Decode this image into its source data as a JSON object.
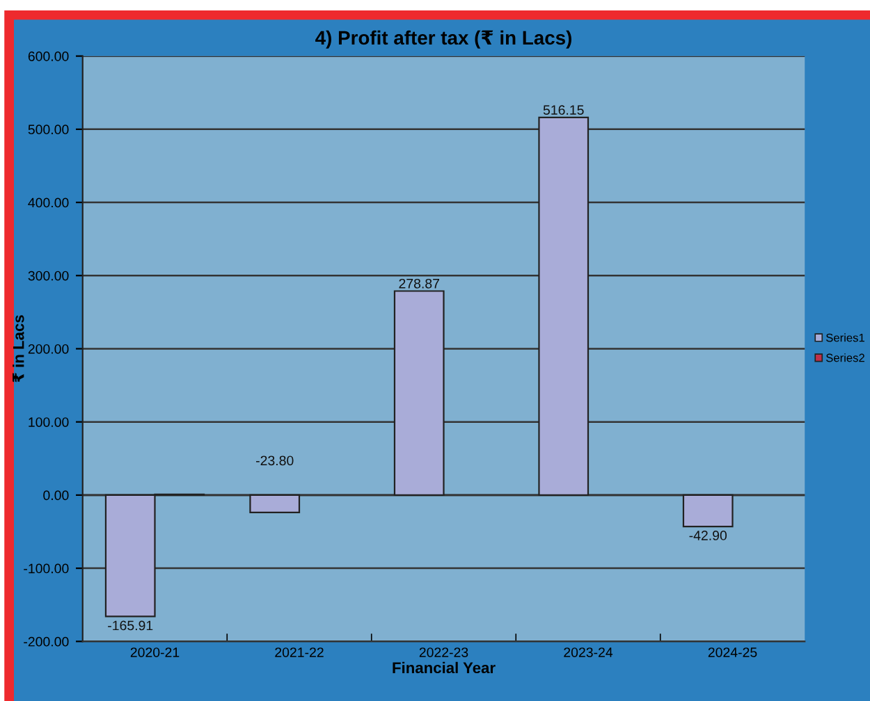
{
  "chart_data": {
    "type": "bar",
    "title": "4) Profit after tax (₹ in Lacs)",
    "xlabel": "Financial Year",
    "ylabel": "₹ in Lacs",
    "categories": [
      "2020-21",
      "2021-22",
      "2022-23",
      "2023-24",
      "2024-25"
    ],
    "series": [
      {
        "name": "Series1",
        "color": "#a9acd8",
        "values": [
          -165.91,
          -23.8,
          278.87,
          516.15,
          -42.9
        ],
        "value_labels": [
          "-165.91",
          "-23.80",
          "278.87",
          "516.15",
          "-42.90"
        ]
      },
      {
        "name": "Series2",
        "color": "#c0304a",
        "values": [
          1,
          null,
          null,
          null,
          null
        ]
      }
    ],
    "ylim": [
      -200,
      600
    ],
    "yticks": [
      {
        "value": -200,
        "label": "-200.00"
      },
      {
        "value": -100,
        "label": "-100.00"
      },
      {
        "value": 0,
        "label": "0.00"
      },
      {
        "value": 100,
        "label": "100.00"
      },
      {
        "value": 200,
        "label": "200.00"
      },
      {
        "value": 300,
        "label": "300.00"
      },
      {
        "value": 400,
        "label": "400.00"
      },
      {
        "value": 500,
        "label": "500.00"
      },
      {
        "value": 600,
        "label": "600.00"
      }
    ],
    "grid": "y",
    "legend": "right"
  }
}
